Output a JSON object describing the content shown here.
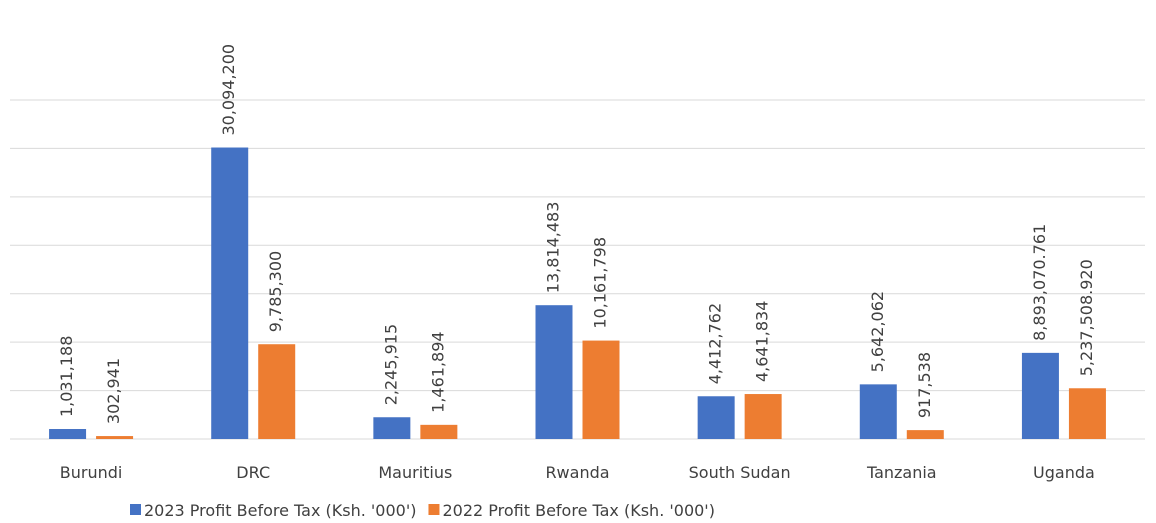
{
  "chart_data": {
    "type": "bar",
    "categories": [
      "Burundi",
      "DRC",
      "Mauritius",
      "Rwanda",
      "South Sudan",
      "Tanzania",
      "Uganda"
    ],
    "series": [
      {
        "name": "2023 Profit Before Tax (Ksh. '000')",
        "color": "#4472c4",
        "values": [
          1031188,
          30094200,
          2245915,
          13814483,
          4412762,
          5642062,
          8893070.761
        ],
        "value_labels": [
          "1,031,188",
          "30,094,200",
          "2,245,915",
          "13,814,483",
          "4,412,762",
          "5,642,062",
          "8,893,070.761"
        ]
      },
      {
        "name": "2022 Profit Before Tax (Ksh. '000')",
        "color": "#ed7d31",
        "values": [
          302941,
          9785300,
          1461894,
          10161798,
          4641834,
          917538,
          5237508.92
        ],
        "value_labels": [
          "302,941",
          "9,785,300",
          "1,461,894",
          "10,161,798",
          "4,641,834",
          "917,538",
          "5,237,508.920"
        ]
      }
    ],
    "ylim": [
      0,
      35000000
    ],
    "yticks": [
      0,
      5000000,
      10000000,
      15000000,
      20000000,
      25000000,
      30000000,
      35000000
    ],
    "grid": true,
    "legend": "bottom"
  }
}
